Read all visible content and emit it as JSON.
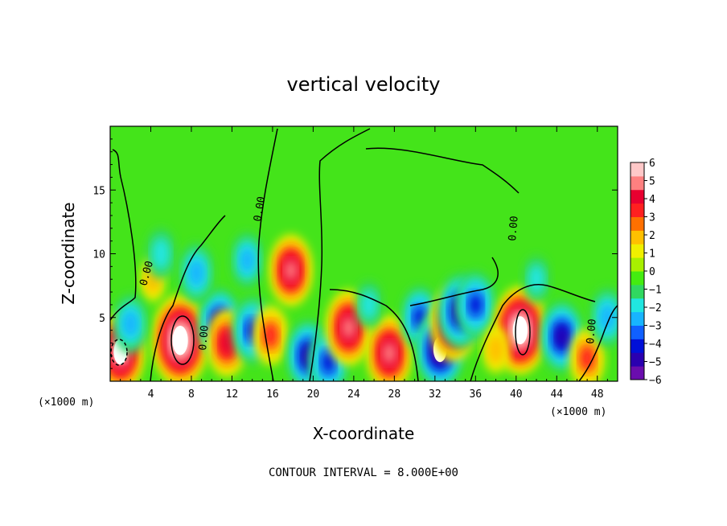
{
  "chart_data": {
    "type": "heatmap",
    "title": "vertical velocity",
    "xlabel": "X-coordinate",
    "ylabel": "Z-coordinate",
    "x_unit_left": "(×1000 m)",
    "x_unit_right": "(×1000 m)",
    "xlim": [
      0,
      50
    ],
    "ylim": [
      0,
      20
    ],
    "x_ticks": [
      4,
      8,
      12,
      16,
      20,
      24,
      28,
      32,
      36,
      40,
      44,
      48
    ],
    "y_ticks": [
      5,
      10,
      15
    ],
    "colorbar": {
      "min": -6,
      "max": 6,
      "tick_labels": [
        "6",
        "5",
        "4",
        "3",
        "2",
        "1",
        "0",
        "−1",
        "−2",
        "−3",
        "−4",
        "−5",
        "−6"
      ],
      "colors": [
        "#6a0dad",
        "#2a00b0",
        "#0010d8",
        "#1060ff",
        "#18b4ff",
        "#20e6e0",
        "#30d860",
        "#44ec10",
        "#a8f000",
        "#f0f000",
        "#ffc000",
        "#ff7000",
        "#ff2020",
        "#e80030",
        "#ff8080",
        "#ffc8c8"
      ]
    },
    "contour_label": "0.00",
    "contour_interval_text": "CONTOUR INTERVAL = 8.000E+00",
    "features": [
      {
        "x": 1,
        "z": 2.3,
        "w": 5.5
      },
      {
        "x": 6.9,
        "z": 3.2,
        "w": 7.0
      },
      {
        "x": 4.2,
        "z": 8.0,
        "w": 1.2
      },
      {
        "x": 2.0,
        "z": 4.5,
        "w": -3.0
      },
      {
        "x": 5.0,
        "z": 10.0,
        "w": -2.0
      },
      {
        "x": 10.8,
        "z": 4.5,
        "w": -4.5
      },
      {
        "x": 11.5,
        "z": 3.0,
        "w": 4.0
      },
      {
        "x": 13.5,
        "z": 9.5,
        "w": -2.5
      },
      {
        "x": 14.0,
        "z": 4.0,
        "w": -4.0
      },
      {
        "x": 15.8,
        "z": 3.6,
        "w": 3.0
      },
      {
        "x": 17.8,
        "z": 8.7,
        "w": 4.5
      },
      {
        "x": 19.5,
        "z": 2.0,
        "w": -4.5
      },
      {
        "x": 21.5,
        "z": 1.5,
        "w": -4.0
      },
      {
        "x": 23.5,
        "z": 4.2,
        "w": 5.0
      },
      {
        "x": 27.5,
        "z": 2.2,
        "w": 5.0
      },
      {
        "x": 25.5,
        "z": 6.0,
        "w": -1.5
      },
      {
        "x": 30.5,
        "z": 5.0,
        "w": -3.5
      },
      {
        "x": 32.5,
        "z": 2.5,
        "w": -5.5
      },
      {
        "x": 33.8,
        "z": 4.5,
        "w": 5.0
      },
      {
        "x": 34.5,
        "z": 5.5,
        "w": -5.0
      },
      {
        "x": 36.0,
        "z": 6.0,
        "w": -4.0
      },
      {
        "x": 40.4,
        "z": 4.0,
        "w": 6.5
      },
      {
        "x": 44.5,
        "z": 3.5,
        "w": -4.5
      },
      {
        "x": 47.0,
        "z": 1.8,
        "w": 3.0
      },
      {
        "x": 49.0,
        "z": 5.0,
        "w": -3.0
      },
      {
        "x": 38.0,
        "z": 2.5,
        "w": 1.5
      },
      {
        "x": 8.5,
        "z": 8.5,
        "w": -3.0
      },
      {
        "x": 42.0,
        "z": 8.0,
        "w": -1.5
      }
    ]
  }
}
